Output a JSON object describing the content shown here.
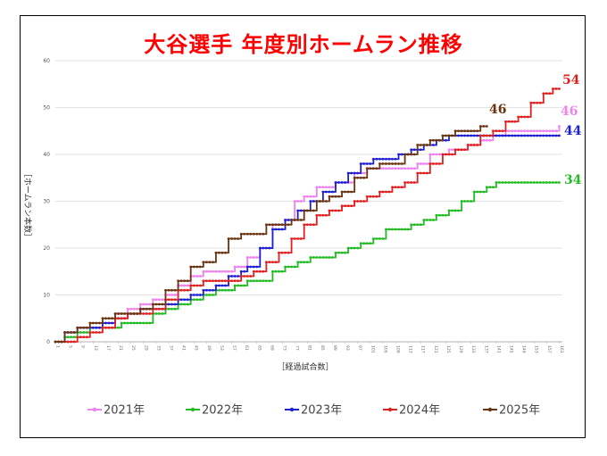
{
  "chart_data": {
    "type": "line",
    "title": "大谷選手 年度別ホームラン推移",
    "xlabel": "［経過試合数］",
    "ylabel": "［ホームラン本数］",
    "ylim": [
      0,
      60
    ],
    "yticks": [
      "0",
      "10",
      "20",
      "30",
      "40",
      "50",
      "60"
    ],
    "xlim": [
      1,
      162
    ],
    "grid": true,
    "legend_position": "bottom",
    "series": [
      {
        "name": "2021年",
        "color": "#ee82ee",
        "end_label": "46",
        "points": [
          [
            1,
            0
          ],
          [
            4,
            2
          ],
          [
            8,
            2
          ],
          [
            12,
            3
          ],
          [
            16,
            4
          ],
          [
            20,
            6
          ],
          [
            24,
            7
          ],
          [
            28,
            8
          ],
          [
            32,
            9
          ],
          [
            36,
            10
          ],
          [
            40,
            12
          ],
          [
            44,
            14
          ],
          [
            48,
            15
          ],
          [
            54,
            15
          ],
          [
            58,
            16
          ],
          [
            62,
            18
          ],
          [
            66,
            20
          ],
          [
            70,
            25
          ],
          [
            74,
            26
          ],
          [
            77,
            30
          ],
          [
            80,
            31
          ],
          [
            84,
            33
          ],
          [
            90,
            34
          ],
          [
            96,
            36
          ],
          [
            100,
            37
          ],
          [
            104,
            37
          ],
          [
            110,
            37
          ],
          [
            116,
            38
          ],
          [
            120,
            40
          ],
          [
            126,
            41
          ],
          [
            132,
            42
          ],
          [
            136,
            43
          ],
          [
            140,
            44
          ],
          [
            144,
            45
          ],
          [
            152,
            45
          ],
          [
            158,
            45
          ],
          [
            161,
            46
          ]
        ]
      },
      {
        "name": "2022年",
        "color": "#22bb22",
        "end_label": "34",
        "points": [
          [
            1,
            0
          ],
          [
            4,
            1
          ],
          [
            8,
            2
          ],
          [
            12,
            3
          ],
          [
            18,
            3
          ],
          [
            22,
            4
          ],
          [
            28,
            4
          ],
          [
            32,
            6
          ],
          [
            36,
            7
          ],
          [
            40,
            8
          ],
          [
            44,
            9
          ],
          [
            48,
            10
          ],
          [
            52,
            11
          ],
          [
            58,
            12
          ],
          [
            62,
            13
          ],
          [
            68,
            13
          ],
          [
            70,
            15
          ],
          [
            74,
            16
          ],
          [
            78,
            17
          ],
          [
            82,
            18
          ],
          [
            86,
            18
          ],
          [
            90,
            19
          ],
          [
            94,
            20
          ],
          [
            98,
            21
          ],
          [
            102,
            22
          ],
          [
            106,
            24
          ],
          [
            110,
            24
          ],
          [
            114,
            25
          ],
          [
            118,
            26
          ],
          [
            122,
            27
          ],
          [
            126,
            28
          ],
          [
            130,
            30
          ],
          [
            134,
            32
          ],
          [
            138,
            33
          ],
          [
            141,
            34
          ],
          [
            150,
            34
          ],
          [
            161,
            34
          ]
        ]
      },
      {
        "name": "2023年",
        "color": "#1e1ed2",
        "end_label": "44",
        "points": [
          [
            1,
            0
          ],
          [
            4,
            2
          ],
          [
            8,
            3
          ],
          [
            12,
            3
          ],
          [
            16,
            4
          ],
          [
            20,
            5
          ],
          [
            24,
            6
          ],
          [
            28,
            7
          ],
          [
            32,
            7
          ],
          [
            36,
            8
          ],
          [
            40,
            9
          ],
          [
            44,
            10
          ],
          [
            48,
            11
          ],
          [
            52,
            12
          ],
          [
            56,
            14
          ],
          [
            60,
            15
          ],
          [
            62,
            16
          ],
          [
            66,
            20
          ],
          [
            70,
            24
          ],
          [
            74,
            26
          ],
          [
            78,
            28
          ],
          [
            82,
            30
          ],
          [
            86,
            32
          ],
          [
            90,
            34
          ],
          [
            94,
            36
          ],
          [
            98,
            38
          ],
          [
            102,
            39
          ],
          [
            106,
            39
          ],
          [
            110,
            40
          ],
          [
            114,
            41
          ],
          [
            118,
            42
          ],
          [
            122,
            43
          ],
          [
            126,
            44
          ],
          [
            132,
            44
          ],
          [
            140,
            44
          ],
          [
            150,
            44
          ],
          [
            161,
            44
          ]
        ]
      },
      {
        "name": "2024年",
        "color": "#e02020",
        "end_label": "54",
        "points": [
          [
            1,
            0
          ],
          [
            5,
            0
          ],
          [
            8,
            1
          ],
          [
            12,
            2
          ],
          [
            16,
            3
          ],
          [
            20,
            5
          ],
          [
            24,
            6
          ],
          [
            28,
            6
          ],
          [
            32,
            7
          ],
          [
            36,
            9
          ],
          [
            40,
            11
          ],
          [
            44,
            12
          ],
          [
            48,
            13
          ],
          [
            52,
            13
          ],
          [
            56,
            13
          ],
          [
            60,
            14
          ],
          [
            64,
            15
          ],
          [
            68,
            17
          ],
          [
            72,
            19
          ],
          [
            76,
            22
          ],
          [
            80,
            25
          ],
          [
            84,
            27
          ],
          [
            88,
            28
          ],
          [
            92,
            29
          ],
          [
            96,
            30
          ],
          [
            100,
            31
          ],
          [
            104,
            32
          ],
          [
            108,
            33
          ],
          [
            112,
            34
          ],
          [
            116,
            36
          ],
          [
            120,
            38
          ],
          [
            124,
            40
          ],
          [
            128,
            41
          ],
          [
            132,
            42
          ],
          [
            136,
            44
          ],
          [
            140,
            45
          ],
          [
            144,
            47
          ],
          [
            148,
            48
          ],
          [
            152,
            51
          ],
          [
            156,
            53
          ],
          [
            159,
            54
          ],
          [
            161,
            54
          ]
        ]
      },
      {
        "name": "2025年",
        "color": "#6b3410",
        "end_label": "46",
        "points": [
          [
            1,
            0
          ],
          [
            4,
            2
          ],
          [
            8,
            3
          ],
          [
            12,
            4
          ],
          [
            16,
            5
          ],
          [
            20,
            6
          ],
          [
            24,
            6
          ],
          [
            28,
            7
          ],
          [
            32,
            8
          ],
          [
            36,
            11
          ],
          [
            40,
            13
          ],
          [
            44,
            16
          ],
          [
            48,
            17
          ],
          [
            52,
            19
          ],
          [
            56,
            22
          ],
          [
            60,
            23
          ],
          [
            64,
            23
          ],
          [
            68,
            25
          ],
          [
            72,
            25
          ],
          [
            76,
            26
          ],
          [
            80,
            28
          ],
          [
            84,
            30
          ],
          [
            88,
            31
          ],
          [
            92,
            32
          ],
          [
            96,
            35
          ],
          [
            100,
            37
          ],
          [
            104,
            38
          ],
          [
            108,
            38
          ],
          [
            112,
            40
          ],
          [
            116,
            42
          ],
          [
            120,
            43
          ],
          [
            124,
            44
          ],
          [
            128,
            45
          ],
          [
            132,
            45
          ],
          [
            136,
            46
          ],
          [
            138,
            46
          ]
        ]
      }
    ]
  }
}
